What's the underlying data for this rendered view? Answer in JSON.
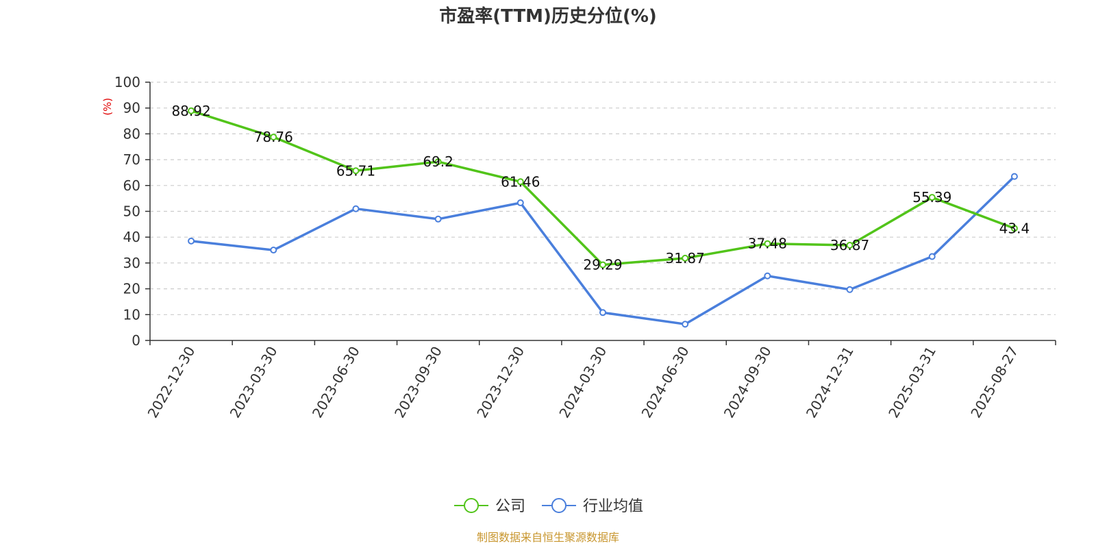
{
  "chart_data": {
    "type": "line",
    "title": "市盈率(TTM)历史分位(%)",
    "ylabel": "(%)",
    "ylim": [
      0,
      100
    ],
    "yticks": [
      "0",
      "10",
      "20",
      "30",
      "40",
      "50",
      "60",
      "70",
      "80",
      "90",
      "100"
    ],
    "categories": [
      "2022-12-30",
      "2023-03-30",
      "2023-06-30",
      "2023-09-30",
      "2023-12-30",
      "2024-03-30",
      "2024-06-30",
      "2024-09-30",
      "2024-12-31",
      "2025-03-31",
      "2025-08-27"
    ],
    "series": [
      {
        "name": "公司",
        "color": "#52c41a",
        "values": [
          88.92,
          78.76,
          65.71,
          69.2,
          61.46,
          29.29,
          31.87,
          37.48,
          36.87,
          55.39,
          43.4
        ],
        "labels": [
          "88.92",
          "78.76",
          "65.71",
          "69.2",
          "61.46",
          "29.29",
          "31.87",
          "37.48",
          "36.87",
          "55.39",
          "43.4"
        ]
      },
      {
        "name": "行业均值",
        "color": "#4a7fdc",
        "values": [
          38.5,
          35.0,
          51.0,
          47.0,
          53.3,
          10.8,
          6.3,
          25.0,
          19.7,
          32.5,
          63.5
        ]
      }
    ],
    "grid": "horizontal-dashed",
    "legend_position": "bottom-center",
    "unit_color": "#e00000",
    "source_color": "#c8962e"
  },
  "source": "制图数据来自恒生聚源数据库"
}
